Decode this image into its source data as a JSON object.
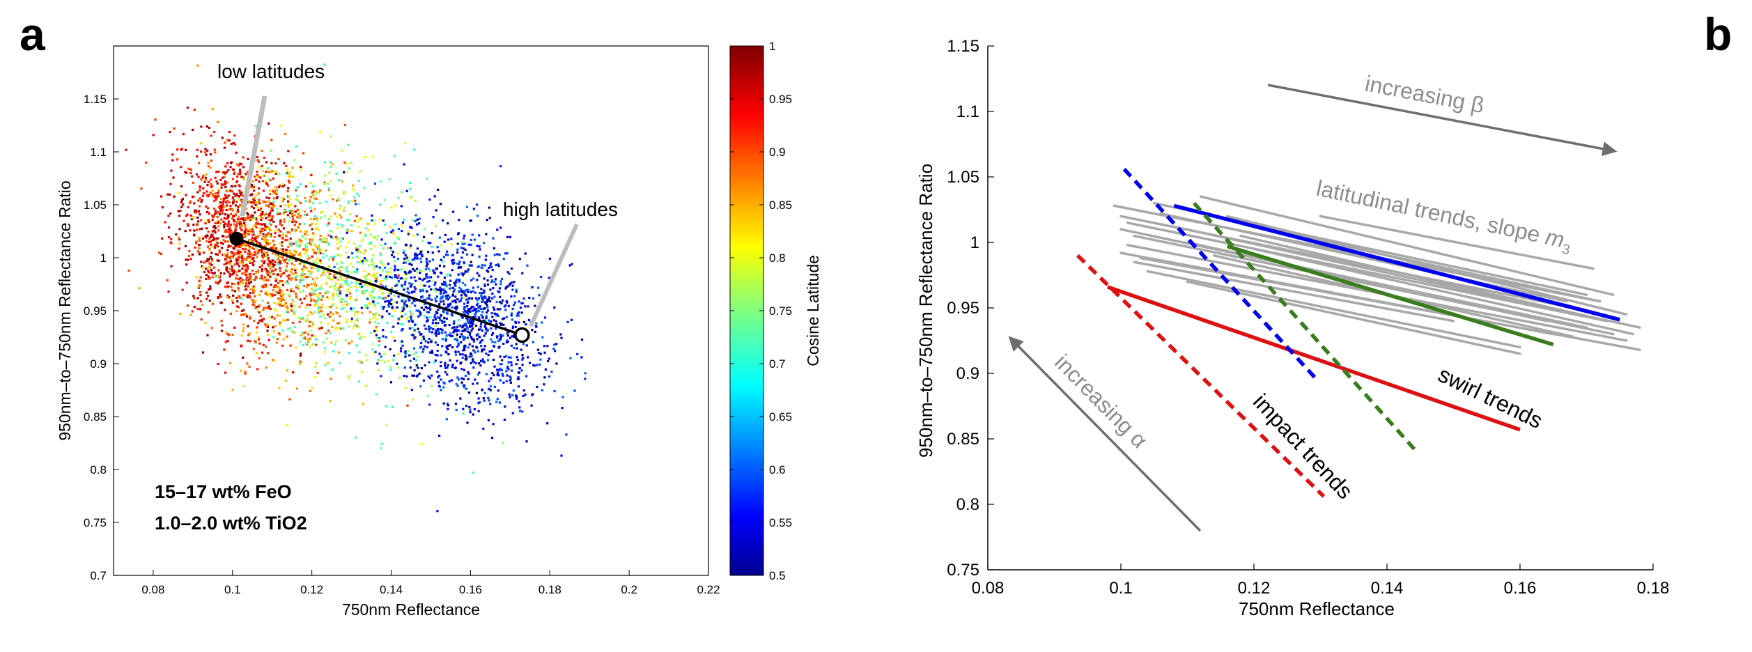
{
  "panel_a": {
    "letter": "a",
    "annotations": {
      "low": "low latitudes",
      "high": "high latitudes"
    },
    "composition": [
      "15–17 wt% FeO",
      "1.0–2.0 wt% TiO2"
    ],
    "colorbar": {
      "label": "Cosine Latitude",
      "ticks": [
        "1",
        "0.95",
        "0.9",
        "0.85",
        "0.8",
        "0.75",
        "0.7",
        "0.65",
        "0.6",
        "0.55",
        "0.5"
      ],
      "colormap": "jet"
    }
  },
  "panel_b": {
    "letter": "b",
    "annotations": {
      "beta": "increasing β",
      "alpha": "increasing α",
      "lat_prefix": "latitudinal trends, slope ",
      "lat_m": "m",
      "lat_sub": "3",
      "swirl": "swirl trends",
      "impact": "impact trends"
    }
  },
  "chart_data": [
    {
      "type": "scatter",
      "panel": "a",
      "xlabel": "750nm Reflectance",
      "ylabel": "950nm–to–750nm Reflectance Ratio",
      "xlim": [
        0.07,
        0.22
      ],
      "ylim": [
        0.7,
        1.2
      ],
      "xticks": [
        "0.08",
        "0.1",
        "0.12",
        "0.14",
        "0.16",
        "0.18",
        "0.2",
        "0.22"
      ],
      "yticks": [
        "0.7",
        "0.75",
        "0.8",
        "0.85",
        "0.9",
        "0.95",
        "1",
        "1.05",
        "1.1",
        "1.15"
      ],
      "color_variable": "cosine latitude",
      "color_range": [
        0.5,
        1.0
      ],
      "clusters": [
        {
          "c_min": 0.9,
          "c_max": 1.0,
          "x_mean": 0.101,
          "x_sd": 0.008,
          "y_mean": 1.02,
          "y_sd": 0.042,
          "n": 1100
        },
        {
          "c_min": 0.82,
          "c_max": 0.92,
          "x_mean": 0.113,
          "x_sd": 0.011,
          "y_mean": 0.995,
          "y_sd": 0.045,
          "n": 800
        },
        {
          "c_min": 0.7,
          "c_max": 0.82,
          "x_mean": 0.13,
          "x_sd": 0.012,
          "y_mean": 0.985,
          "y_sd": 0.05,
          "n": 700
        },
        {
          "c_min": 0.5,
          "c_max": 0.62,
          "x_mean": 0.158,
          "x_sd": 0.011,
          "y_mean": 0.945,
          "y_sd": 0.04,
          "n": 1300
        }
      ],
      "trend_line": {
        "start": [
          0.101,
          1.018
        ],
        "end": [
          0.173,
          0.927
        ]
      }
    },
    {
      "type": "line",
      "panel": "b",
      "xlabel": "750nm Reflectance",
      "ylabel": "950nm–to–750nm Reflectance Ratio",
      "xlim": [
        0.08,
        0.18
      ],
      "ylim": [
        0.75,
        1.15
      ],
      "xticks": [
        "0.08",
        "0.1",
        "0.12",
        "0.14",
        "0.16",
        "0.18"
      ],
      "yticks": [
        "0.75",
        "0.8",
        "0.85",
        "0.9",
        "0.95",
        "1",
        "1.05",
        "1.1",
        "1.15"
      ],
      "grey_latitudinal": [
        [
          [
            0.099,
            1.028
          ],
          [
            0.172,
            0.955
          ]
        ],
        [
          [
            0.1,
            1.02
          ],
          [
            0.168,
            0.95
          ]
        ],
        [
          [
            0.101,
            1.015
          ],
          [
            0.173,
            0.94
          ]
        ],
        [
          [
            0.1,
            1.01
          ],
          [
            0.17,
            0.935
          ]
        ],
        [
          [
            0.102,
            1.005
          ],
          [
            0.174,
            0.93
          ]
        ],
        [
          [
            0.101,
            0.998
          ],
          [
            0.176,
            0.925
          ]
        ],
        [
          [
            0.1,
            0.992
          ],
          [
            0.165,
            0.93
          ]
        ],
        [
          [
            0.103,
            0.988
          ],
          [
            0.178,
            0.918
          ]
        ],
        [
          [
            0.105,
            1.03
          ],
          [
            0.17,
            0.96
          ]
        ],
        [
          [
            0.112,
            1.035
          ],
          [
            0.174,
            0.96
          ]
        ],
        [
          [
            0.116,
            1.02
          ],
          [
            0.176,
            0.945
          ]
        ],
        [
          [
            0.108,
            1.012
          ],
          [
            0.178,
            0.935
          ]
        ],
        [
          [
            0.104,
            0.978
          ],
          [
            0.16,
            0.92
          ]
        ],
        [
          [
            0.118,
            1.005
          ],
          [
            0.169,
            0.945
          ]
        ],
        [
          [
            0.11,
            1.0
          ],
          [
            0.164,
            0.94
          ]
        ],
        [
          [
            0.12,
            0.995
          ],
          [
            0.177,
            0.93
          ]
        ],
        [
          [
            0.114,
            0.99
          ],
          [
            0.168,
            0.928
          ]
        ],
        [
          [
            0.106,
            1.022
          ],
          [
            0.167,
            0.955
          ]
        ],
        [
          [
            0.102,
            0.985
          ],
          [
            0.15,
            0.94
          ]
        ],
        [
          [
            0.122,
            1.01
          ],
          [
            0.172,
            0.955
          ]
        ],
        [
          [
            0.13,
            1.02
          ],
          [
            0.171,
            0.98
          ]
        ],
        [
          [
            0.11,
            0.97
          ],
          [
            0.16,
            0.915
          ]
        ]
      ],
      "series": [
        {
          "kind": "latitudinal",
          "color": "#0000ee",
          "dash": false,
          "points": [
            [
              0.108,
              1.028
            ],
            [
              0.175,
              0.941
            ]
          ]
        },
        {
          "kind": "latitudinal",
          "color": "#3a7d1e",
          "dash": false,
          "points": [
            [
              0.116,
              0.997
            ],
            [
              0.165,
              0.922
            ]
          ]
        },
        {
          "kind": "swirl",
          "color": "#dd1111",
          "dash": false,
          "points": [
            [
              0.098,
              0.966
            ],
            [
              0.16,
              0.857
            ]
          ]
        },
        {
          "kind": "impact",
          "color": "#0000ee",
          "dash": true,
          "points": [
            [
              0.1005,
              1.056
            ],
            [
              0.1295,
              0.895
            ]
          ]
        },
        {
          "kind": "impact",
          "color": "#3a7d1e",
          "dash": true,
          "points": [
            [
              0.111,
              1.03
            ],
            [
              0.1445,
              0.84
            ]
          ]
        },
        {
          "kind": "impact",
          "color": "#dd1111",
          "dash": true,
          "points": [
            [
              0.0935,
              0.99
            ],
            [
              0.1305,
              0.806
            ]
          ]
        }
      ]
    }
  ]
}
